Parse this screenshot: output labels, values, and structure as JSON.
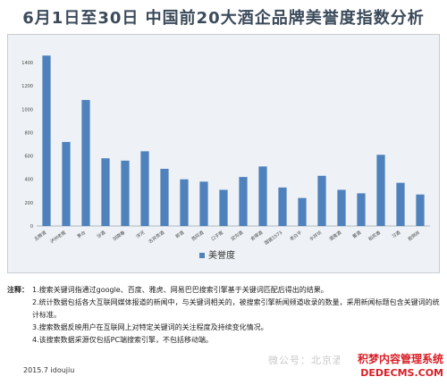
{
  "header": {
    "title": "6月1日至30日  中国前20大酒企品牌美誉度指数分析"
  },
  "chart_data": {
    "type": "bar",
    "categories": [
      "五粮液",
      "泸州老窖",
      "茅台",
      "汾酒",
      "剑南春",
      "洋河",
      "古井贡酒",
      "郎酒",
      "西凤酒",
      "口子窖",
      "双沟酒",
      "舍得酒",
      "国窖1573",
      "老白干",
      "水井坊",
      "酒鬼酒",
      "董酒",
      "稻花香",
      "习酒",
      "扳倒井"
    ],
    "series": [
      {
        "name": "美誉度",
        "values": [
          1460,
          720,
          1080,
          580,
          560,
          640,
          490,
          400,
          380,
          310,
          420,
          510,
          330,
          240,
          430,
          310,
          280,
          610,
          370,
          270
        ]
      }
    ],
    "yticks": [
      "0",
      "200",
      "400",
      "600",
      "800",
      "1000",
      "1200",
      "1400"
    ],
    "ylim": [
      0,
      1500
    ],
    "legend": "bottom-center",
    "color": "#4f81bd",
    "grid": false
  },
  "notes": {
    "label": "注释：",
    "items": [
      "1.搜索关键词指通过google、百度、雅虎、网易巴巴搜索引擎基于关键词匹配后得出的结果。",
      "2.统计数据包括各大互联网媒体报道的新闻中，与关键词相关的，被搜索引擎新闻频道收录的数量，采用新闻标题包含关键词的统计标准。",
      "3.搜索数据反映用户在互联网上对特定关键词的关注程度及持续变化情况。",
      "4.该搜索数据采源仅包括PC端搜索引擎，不包括移动端。"
    ]
  },
  "footer": {
    "text": "2015.7 idoujiu"
  },
  "watermark": {
    "text": "微公号：北京酒"
  },
  "badge": {
    "line1": "积梦内容管理系统",
    "line2": "DEDECMS.COM"
  }
}
